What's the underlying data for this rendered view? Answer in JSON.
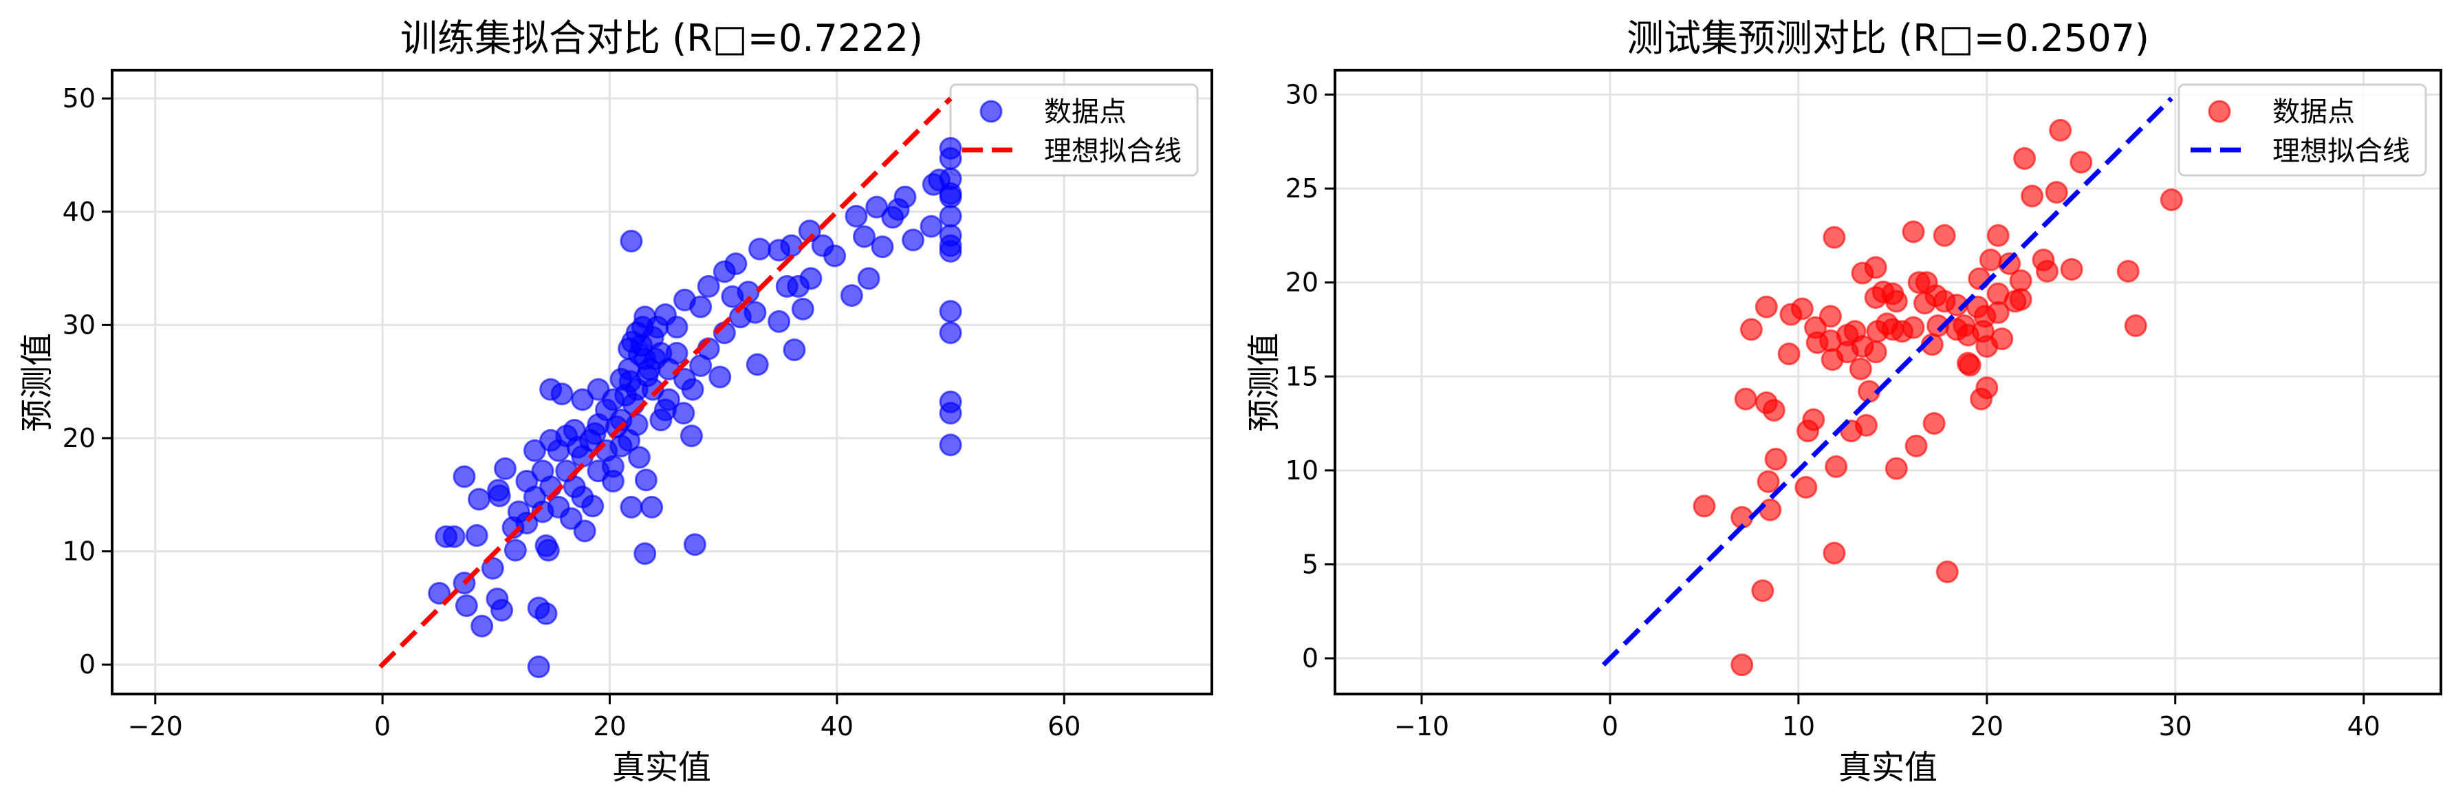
{
  "chart_data": [
    {
      "type": "scatter",
      "title": "训练集拟合对比 (R□=0.7222)",
      "xlabel": "真实值",
      "ylabel": "预测值",
      "xlim": [
        -23.8,
        73.0
      ],
      "ylim": [
        -2.6,
        52.5
      ],
      "xticks": [
        -20,
        0,
        20,
        40,
        60
      ],
      "yticks": [
        0,
        10,
        20,
        30,
        40,
        50
      ],
      "grid": true,
      "legend_position": "top-right",
      "legend": [
        "数据点",
        "理想拟合线"
      ],
      "point_color": "#0000ff",
      "line_color": "#ff0000",
      "ideal_line": [
        [
          -0.2,
          -0.2
        ],
        [
          50,
          50
        ]
      ],
      "points": [
        [
          13.75,
          -0.2
        ],
        [
          8.75,
          3.4
        ],
        [
          7.4,
          5.2
        ],
        [
          5.0,
          6.3
        ],
        [
          7.2,
          7.2
        ],
        [
          10.1,
          5.8
        ],
        [
          10.5,
          4.8
        ],
        [
          13.75,
          5.0
        ],
        [
          14.4,
          4.5
        ],
        [
          9.7,
          8.5
        ],
        [
          5.6,
          11.3
        ],
        [
          6.3,
          11.3
        ],
        [
          8.3,
          11.4
        ],
        [
          7.2,
          16.6
        ],
        [
          8.5,
          14.6
        ],
        [
          10.2,
          15.4
        ],
        [
          10.3,
          14.9
        ],
        [
          10.8,
          17.3
        ],
        [
          11.5,
          12.1
        ],
        [
          11.7,
          10.1
        ],
        [
          14.4,
          10.5
        ],
        [
          14.6,
          10.1
        ],
        [
          23.1,
          9.8
        ],
        [
          27.5,
          10.6
        ],
        [
          21.9,
          13.9
        ],
        [
          23.7,
          13.9
        ],
        [
          17.8,
          11.8
        ],
        [
          16.6,
          12.9
        ],
        [
          18.5,
          14.0
        ],
        [
          23.2,
          16.3
        ],
        [
          22.6,
          18.3
        ],
        [
          27.2,
          20.2
        ],
        [
          26.5,
          22.2
        ],
        [
          21.9,
          37.4
        ],
        [
          33.0,
          26.5
        ],
        [
          36.25,
          27.8
        ],
        [
          29.7,
          25.4
        ],
        [
          37.0,
          31.4
        ],
        [
          41.3,
          32.6
        ],
        [
          42.8,
          34.1
        ],
        [
          39.8,
          36.1
        ],
        [
          38.75,
          37.0
        ],
        [
          37.6,
          38.3
        ],
        [
          41.7,
          39.6
        ],
        [
          43.5,
          40.4
        ],
        [
          42.4,
          37.8
        ],
        [
          44.0,
          36.9
        ],
        [
          44.9,
          39.5
        ],
        [
          45.4,
          40.2
        ],
        [
          46.0,
          41.3
        ],
        [
          46.7,
          37.5
        ],
        [
          48.3,
          38.7
        ],
        [
          48.5,
          42.4
        ],
        [
          49.0,
          42.8
        ],
        [
          50,
          45.6
        ],
        [
          50,
          44.7
        ],
        [
          50,
          42.9
        ],
        [
          50,
          41.6
        ],
        [
          50,
          41.3
        ],
        [
          50,
          39.6
        ],
        [
          50,
          37.9
        ],
        [
          50,
          37.0
        ],
        [
          50,
          36.5
        ],
        [
          50,
          31.2
        ],
        [
          50,
          29.3
        ],
        [
          50,
          23.2
        ],
        [
          50,
          22.2
        ],
        [
          50,
          19.4
        ],
        [
          33.2,
          36.7
        ],
        [
          34.9,
          36.6
        ],
        [
          36.0,
          37.0
        ],
        [
          31.1,
          35.4
        ],
        [
          30.1,
          34.7
        ],
        [
          28.7,
          33.4
        ],
        [
          26.6,
          32.2
        ],
        [
          28.0,
          31.6
        ],
        [
          31.5,
          30.7
        ],
        [
          32.8,
          31.1
        ],
        [
          34.9,
          30.3
        ],
        [
          35.6,
          33.4
        ],
        [
          37.7,
          34.1
        ],
        [
          36.6,
          33.4
        ],
        [
          32.2,
          32.9
        ],
        [
          30.1,
          29.3
        ],
        [
          28.7,
          27.9
        ],
        [
          28.0,
          26.4
        ],
        [
          27.3,
          24.3
        ],
        [
          25.9,
          27.5
        ],
        [
          26.6,
          25.2
        ],
        [
          30.8,
          32.5
        ],
        [
          23.1,
          30.7
        ],
        [
          22.4,
          29.3
        ],
        [
          23.8,
          28.9
        ],
        [
          21.7,
          27.9
        ],
        [
          23.1,
          27.0
        ],
        [
          24.5,
          27.5
        ],
        [
          21.7,
          26.1
        ],
        [
          21.0,
          25.2
        ],
        [
          22.4,
          24.3
        ],
        [
          23.8,
          24.3
        ],
        [
          25.2,
          26.1
        ],
        [
          20.3,
          23.4
        ],
        [
          19.0,
          24.3
        ],
        [
          17.6,
          23.4
        ],
        [
          19.7,
          22.5
        ],
        [
          21.0,
          21.6
        ],
        [
          22.4,
          21.2
        ],
        [
          24.5,
          21.6
        ],
        [
          19.0,
          21.2
        ],
        [
          16.9,
          20.7
        ],
        [
          18.3,
          19.8
        ],
        [
          14.8,
          24.3
        ],
        [
          15.8,
          23.9
        ],
        [
          16.2,
          20.2
        ],
        [
          14.8,
          19.8
        ],
        [
          13.4,
          18.9
        ],
        [
          15.5,
          18.9
        ],
        [
          17.6,
          18.4
        ],
        [
          19.7,
          18.9
        ],
        [
          20.3,
          17.5
        ],
        [
          19.0,
          17.1
        ],
        [
          16.2,
          17.1
        ],
        [
          14.1,
          17.1
        ],
        [
          12.7,
          16.2
        ],
        [
          14.8,
          15.7
        ],
        [
          16.9,
          15.7
        ],
        [
          13.4,
          14.8
        ],
        [
          15.5,
          13.9
        ],
        [
          12.0,
          13.5
        ],
        [
          12.7,
          12.5
        ],
        [
          14.1,
          13.5
        ],
        [
          17.6,
          14.8
        ],
        [
          20.3,
          16.2
        ],
        [
          21.7,
          19.8
        ],
        [
          21.0,
          19.3
        ],
        [
          22.1,
          23.0
        ],
        [
          23.5,
          26.1
        ],
        [
          22.8,
          28.2
        ],
        [
          24.2,
          29.8
        ],
        [
          24.9,
          30.9
        ],
        [
          25.9,
          29.8
        ],
        [
          25.2,
          23.4
        ],
        [
          24.9,
          22.5
        ],
        [
          22.0,
          28.5
        ],
        [
          22.6,
          27.4
        ],
        [
          23.3,
          25.5
        ],
        [
          21.4,
          23.8
        ],
        [
          20.6,
          21.0
        ],
        [
          18.7,
          20.4
        ],
        [
          17.2,
          19.2
        ],
        [
          22.9,
          29.8
        ],
        [
          24.0,
          27.0
        ],
        [
          21.8,
          25.0
        ]
      ]
    },
    {
      "type": "scatter",
      "title": "测试集预测对比 (R□=0.2507)",
      "xlabel": "真实值",
      "ylabel": "预测值",
      "xlim": [
        -14.6,
        44.1
      ],
      "ylim": [
        -1.9,
        31.3
      ],
      "xticks": [
        -10,
        0,
        10,
        20,
        30,
        40
      ],
      "yticks": [
        0,
        5,
        10,
        15,
        20,
        25,
        30
      ],
      "grid": true,
      "legend_position": "top-right",
      "legend": [
        "数据点",
        "理想拟合线"
      ],
      "point_color": "#ff0000",
      "line_color": "#0000ff",
      "ideal_line": [
        [
          -0.35,
          -0.35
        ],
        [
          29.8,
          29.8
        ]
      ],
      "points": [
        [
          23.9,
          28.1
        ],
        [
          22.0,
          26.6
        ],
        [
          25.0,
          26.4
        ],
        [
          22.4,
          24.6
        ],
        [
          23.7,
          24.8
        ],
        [
          29.8,
          24.4
        ],
        [
          16.1,
          22.7
        ],
        [
          17.75,
          22.5
        ],
        [
          11.9,
          22.4
        ],
        [
          20.6,
          22.5
        ],
        [
          13.4,
          20.5
        ],
        [
          14.1,
          20.8
        ],
        [
          20.2,
          21.2
        ],
        [
          21.2,
          21.0
        ],
        [
          23.0,
          21.2
        ],
        [
          23.2,
          20.6
        ],
        [
          24.5,
          20.7
        ],
        [
          27.5,
          20.6
        ],
        [
          27.9,
          17.7
        ],
        [
          16.4,
          20.0
        ],
        [
          16.8,
          20.0
        ],
        [
          19.6,
          20.2
        ],
        [
          21.8,
          20.1
        ],
        [
          14.5,
          19.5
        ],
        [
          15.0,
          19.4
        ],
        [
          14.1,
          19.2
        ],
        [
          15.2,
          19.0
        ],
        [
          16.7,
          18.9
        ],
        [
          17.3,
          19.3
        ],
        [
          17.75,
          19.0
        ],
        [
          18.4,
          18.8
        ],
        [
          20.6,
          19.4
        ],
        [
          21.5,
          19.0
        ],
        [
          21.8,
          19.1
        ],
        [
          8.3,
          18.7
        ],
        [
          10.2,
          18.6
        ],
        [
          9.6,
          18.3
        ],
        [
          11.7,
          18.2
        ],
        [
          19.5,
          18.7
        ],
        [
          19.9,
          18.2
        ],
        [
          20.6,
          18.4
        ],
        [
          7.5,
          17.5
        ],
        [
          10.9,
          17.6
        ],
        [
          12.6,
          17.2
        ],
        [
          13.0,
          17.4
        ],
        [
          13.4,
          16.6
        ],
        [
          14.7,
          17.8
        ],
        [
          15.0,
          17.5
        ],
        [
          14.2,
          17.4
        ],
        [
          15.5,
          17.4
        ],
        [
          16.1,
          17.6
        ],
        [
          17.4,
          17.7
        ],
        [
          18.8,
          17.7
        ],
        [
          18.4,
          17.5
        ],
        [
          19.0,
          17.2
        ],
        [
          19.8,
          17.4
        ],
        [
          20.8,
          17.0
        ],
        [
          20.0,
          16.6
        ],
        [
          11.0,
          16.8
        ],
        [
          11.7,
          16.9
        ],
        [
          12.6,
          16.3
        ],
        [
          14.1,
          16.3
        ],
        [
          17.1,
          16.7
        ],
        [
          9.5,
          16.2
        ],
        [
          11.8,
          15.9
        ],
        [
          13.3,
          15.4
        ],
        [
          19.0,
          15.7
        ],
        [
          19.1,
          15.6
        ],
        [
          20.0,
          14.4
        ],
        [
          19.7,
          13.8
        ],
        [
          13.75,
          14.2
        ],
        [
          7.2,
          13.8
        ],
        [
          8.3,
          13.6
        ],
        [
          8.7,
          13.2
        ],
        [
          10.8,
          12.7
        ],
        [
          10.5,
          12.1
        ],
        [
          12.8,
          12.1
        ],
        [
          13.6,
          12.4
        ],
        [
          17.2,
          12.5
        ],
        [
          16.25,
          11.3
        ],
        [
          8.8,
          10.6
        ],
        [
          12.0,
          10.2
        ],
        [
          15.2,
          10.1
        ],
        [
          8.4,
          9.4
        ],
        [
          10.4,
          9.1
        ],
        [
          8.5,
          7.9
        ],
        [
          7.0,
          7.5
        ],
        [
          5.0,
          8.1
        ],
        [
          11.9,
          5.6
        ],
        [
          17.9,
          4.6
        ],
        [
          8.1,
          3.6
        ],
        [
          7.0,
          -0.35
        ]
      ]
    }
  ]
}
